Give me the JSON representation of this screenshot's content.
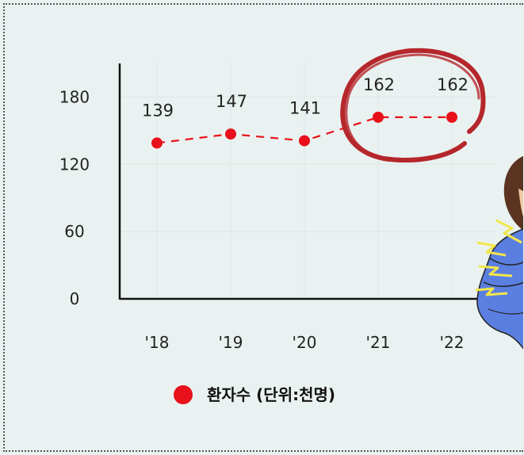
{
  "chart_data": {
    "type": "line",
    "categories": [
      "'18",
      "'19",
      "'20",
      "'21",
      "'22"
    ],
    "series": [
      {
        "name": "환자수 (단위:천명)",
        "values": [
          139,
          147,
          141,
          162,
          162
        ],
        "color": "#e8101a"
      }
    ],
    "data_labels": [
      "139",
      "147",
      "141",
      "162",
      "162"
    ],
    "y_ticks": [
      "180",
      "120",
      "60",
      "0"
    ],
    "y_tick_values": [
      180,
      120,
      60,
      0
    ],
    "ylim": [
      0,
      210
    ],
    "title": "",
    "xlabel": "",
    "ylabel": "",
    "line_style": "dashed",
    "grid": true,
    "legend_position": "bottom-left",
    "highlight": {
      "categories": [
        "'21",
        "'22"
      ],
      "shape": "hand-drawn circle",
      "color": "#b5272c"
    }
  },
  "illustration": {
    "subject": "person holding chest in pain with yellow pain marks",
    "shirt_color": "#5b7fe0",
    "hair_color": "#5a3420",
    "pain_mark_color": "#f2e64a"
  }
}
